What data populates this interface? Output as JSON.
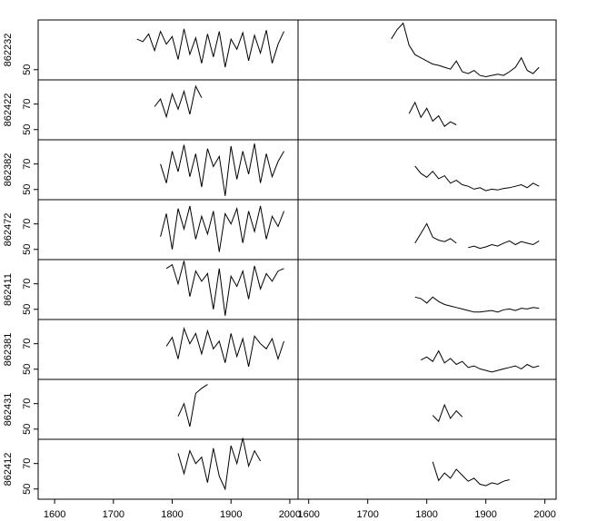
{
  "chart_data": [
    {
      "type": "line",
      "ylabel": "862232",
      "xlim": [
        1572,
        2014
      ],
      "ylim": [
        42,
        89
      ],
      "yticks": [
        50
      ],
      "color": "#000000",
      "x": [
        1740,
        1750,
        1760,
        1770,
        1780,
        1790,
        1800,
        1810,
        1820,
        1830,
        1840,
        1850,
        1860,
        1870,
        1880,
        1890,
        1900,
        1910,
        1920,
        1930,
        1940,
        1950,
        1960,
        1970,
        1980,
        1990
      ],
      "values": [
        74,
        72,
        78,
        65,
        80,
        70,
        76,
        58,
        82,
        62,
        75,
        55,
        78,
        60,
        80,
        52,
        74,
        66,
        79,
        57,
        77,
        63,
        81,
        55,
        70,
        80
      ]
    },
    {
      "type": "line",
      "ylabel": "862422",
      "xlim": [
        1572,
        2014
      ],
      "ylim": [
        42,
        89
      ],
      "yticks": [
        50,
        70
      ],
      "color": "#000000",
      "x": [
        1770,
        1780,
        1790,
        1800,
        1810,
        1820,
        1830,
        1840,
        1850
      ],
      "values": [
        68,
        74,
        60,
        78,
        66,
        80,
        62,
        84,
        75
      ]
    },
    {
      "type": "line",
      "ylabel": "862382",
      "xlim": [
        1572,
        2014
      ],
      "ylim": [
        42,
        89
      ],
      "yticks": [
        50,
        70
      ],
      "color": "#000000",
      "x": [
        1780,
        1790,
        1800,
        1810,
        1820,
        1830,
        1840,
        1850,
        1860,
        1870,
        1880,
        1890,
        1900,
        1910,
        1920,
        1930,
        1940,
        1950,
        1960,
        1970,
        1980,
        1990
      ],
      "values": [
        70,
        55,
        80,
        64,
        85,
        60,
        78,
        52,
        82,
        68,
        76,
        45,
        84,
        58,
        80,
        62,
        86,
        55,
        78,
        60,
        72,
        80
      ]
    },
    {
      "type": "line",
      "ylabel": "862472",
      "xlim": [
        1572,
        2014
      ],
      "ylim": [
        42,
        89
      ],
      "yticks": [
        50,
        70
      ],
      "color": "#000000",
      "x": [
        1780,
        1790,
        1800,
        1810,
        1820,
        1830,
        1840,
        1850,
        1860,
        1870,
        1880,
        1890,
        1900,
        1910,
        1920,
        1930,
        1940,
        1950,
        1960,
        1970,
        1980,
        1990
      ],
      "values": [
        60,
        78,
        50,
        82,
        66,
        84,
        58,
        76,
        62,
        80,
        48,
        78,
        70,
        82,
        55,
        80,
        64,
        84,
        58,
        76,
        68,
        80
      ]
    },
    {
      "type": "line",
      "ylabel": "862411",
      "xlim": [
        1572,
        2014
      ],
      "ylim": [
        42,
        89
      ],
      "yticks": [
        50,
        70
      ],
      "color": "#000000",
      "x": [
        1790,
        1800,
        1810,
        1820,
        1830,
        1840,
        1850,
        1860,
        1870,
        1880,
        1890,
        1900,
        1910,
        1920,
        1930,
        1940,
        1950,
        1960,
        1970,
        1980,
        1990
      ],
      "values": [
        82,
        85,
        70,
        88,
        60,
        80,
        72,
        78,
        50,
        82,
        45,
        76,
        68,
        80,
        58,
        84,
        66,
        78,
        72,
        80,
        82
      ]
    },
    {
      "type": "line",
      "ylabel": "862381",
      "xlim": [
        1572,
        2014
      ],
      "ylim": [
        42,
        89
      ],
      "yticks": [
        50,
        70
      ],
      "color": "#000000",
      "x": [
        1790,
        1800,
        1810,
        1820,
        1830,
        1840,
        1850,
        1860,
        1870,
        1880,
        1890,
        1900,
        1910,
        1920,
        1930,
        1940,
        1950,
        1960,
        1970,
        1980,
        1990
      ],
      "values": [
        68,
        75,
        58,
        82,
        70,
        78,
        62,
        80,
        66,
        72,
        55,
        78,
        60,
        74,
        52,
        76,
        70,
        66,
        74,
        58,
        72
      ]
    },
    {
      "type": "line",
      "ylabel": "862431",
      "xlim": [
        1572,
        2014
      ],
      "ylim": [
        42,
        89
      ],
      "yticks": [
        50,
        70
      ],
      "color": "#000000",
      "x": [
        1810,
        1820,
        1830,
        1840,
        1850,
        1860
      ],
      "values": [
        60,
        70,
        52,
        78,
        82,
        85
      ]
    },
    {
      "type": "line",
      "ylabel": "862412",
      "xlim": [
        1572,
        2014
      ],
      "ylim": [
        42,
        89
      ],
      "yticks": [
        50,
        70
      ],
      "color": "#000000",
      "xticks": [
        1600,
        1700,
        1800,
        1900,
        2000
      ],
      "x": [
        1810,
        1820,
        1830,
        1840,
        1850,
        1860,
        1870,
        1880,
        1890,
        1900,
        1910,
        1920,
        1930,
        1940,
        1950
      ],
      "values": [
        78,
        62,
        80,
        70,
        75,
        55,
        82,
        60,
        50,
        84,
        70,
        90,
        68,
        80,
        72
      ]
    },
    {
      "type": "line",
      "xlim": [
        1582,
        2019
      ],
      "ylim": [
        5,
        100
      ],
      "color": "#000000",
      "x": [
        1740,
        1750,
        1760,
        1770,
        1780,
        1790,
        1800,
        1810,
        1820,
        1830,
        1840,
        1850,
        1860,
        1870,
        1880,
        1890,
        1900,
        1910,
        1920,
        1930,
        1940,
        1950,
        1960,
        1970,
        1980,
        1990
      ],
      "values": [
        70,
        85,
        95,
        60,
        45,
        40,
        35,
        30,
        28,
        25,
        22,
        35,
        18,
        15,
        20,
        12,
        10,
        12,
        14,
        12,
        18,
        25,
        40,
        20,
        15,
        25
      ]
    },
    {
      "type": "line",
      "xlim": [
        1582,
        2019
      ],
      "ylim": [
        20,
        100
      ],
      "color": "#000000",
      "x": [
        1770,
        1780,
        1790,
        1800,
        1810,
        1820,
        1830,
        1840,
        1850
      ],
      "values": [
        55,
        70,
        50,
        62,
        45,
        52,
        38,
        44,
        40
      ]
    },
    {
      "type": "line",
      "xlim": [
        1582,
        2019
      ],
      "ylim": [
        20,
        100
      ],
      "color": "#000000",
      "x": [
        1780,
        1790,
        1800,
        1810,
        1820,
        1830,
        1840,
        1850,
        1860,
        1870,
        1880,
        1890,
        1900,
        1910,
        1920,
        1930,
        1940,
        1950,
        1960,
        1970,
        1980,
        1990
      ],
      "values": [
        65,
        55,
        50,
        58,
        48,
        52,
        42,
        46,
        40,
        38,
        34,
        36,
        32,
        34,
        33,
        35,
        36,
        38,
        40,
        36,
        42,
        38
      ]
    },
    {
      "type": "line",
      "xlim": [
        1582,
        2019
      ],
      "ylim": [
        20,
        100
      ],
      "color": "#000000",
      "x": [
        1780,
        1790,
        1800,
        1810,
        1820,
        1830,
        1840,
        1850,
        1860,
        1870,
        1880,
        1890,
        1900,
        1910,
        1920,
        1930,
        1940,
        1950,
        1960,
        1970,
        1980,
        1990
      ],
      "values": [
        42,
        55,
        68,
        50,
        46,
        44,
        48,
        42,
        null,
        36,
        38,
        35,
        37,
        40,
        38,
        42,
        45,
        40,
        44,
        42,
        40,
        45
      ]
    },
    {
      "type": "line",
      "xlim": [
        1582,
        2019
      ],
      "ylim": [
        20,
        100
      ],
      "color": "#000000",
      "x": [
        1780,
        1790,
        1800,
        1810,
        1820,
        1830,
        1840,
        1850,
        1860,
        1870,
        1880,
        1890,
        1900,
        1910,
        1920,
        1930,
        1940,
        1950,
        1960,
        1970,
        1980,
        1990
      ],
      "values": [
        50,
        48,
        42,
        50,
        44,
        40,
        38,
        36,
        34,
        32,
        30,
        30,
        31,
        32,
        30,
        33,
        34,
        32,
        35,
        34,
        36,
        35
      ]
    },
    {
      "type": "line",
      "xlim": [
        1582,
        2019
      ],
      "ylim": [
        20,
        100
      ],
      "color": "#000000",
      "x": [
        1790,
        1800,
        1810,
        1820,
        1830,
        1840,
        1850,
        1860,
        1870,
        1880,
        1890,
        1900,
        1910,
        1920,
        1930,
        1940,
        1950,
        1960,
        1970,
        1980,
        1990
      ],
      "values": [
        46,
        50,
        44,
        58,
        42,
        48,
        40,
        44,
        36,
        38,
        34,
        32,
        30,
        32,
        34,
        36,
        38,
        34,
        40,
        36,
        38
      ]
    },
    {
      "type": "line",
      "xlim": [
        1582,
        2019
      ],
      "ylim": [
        20,
        100
      ],
      "color": "#000000",
      "x": [
        1810,
        1820,
        1830,
        1840,
        1850,
        1860
      ],
      "values": [
        52,
        44,
        66,
        48,
        58,
        50
      ]
    },
    {
      "type": "line",
      "xlim": [
        1582,
        2019
      ],
      "ylim": [
        20,
        100
      ],
      "color": "#000000",
      "xticks": [
        1600,
        1700,
        1800,
        1900,
        2000
      ],
      "x": [
        1810,
        1820,
        1830,
        1840,
        1850,
        1860,
        1870,
        1880,
        1890,
        1900,
        1910,
        1920,
        1930,
        1940
      ],
      "values": [
        70,
        45,
        55,
        48,
        60,
        52,
        44,
        48,
        40,
        38,
        42,
        40,
        44,
        46
      ]
    }
  ]
}
